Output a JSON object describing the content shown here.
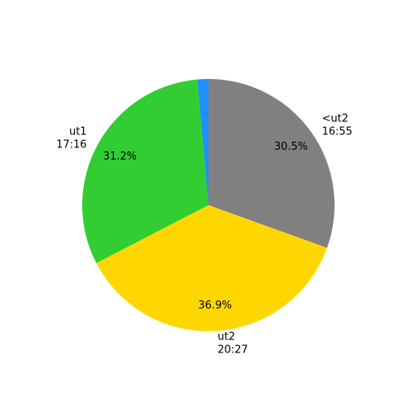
{
  "chart_data": {
    "type": "pie",
    "categories": [
      [
        "<ut2",
        "16:55"
      ],
      [
        "ut2",
        "20:27"
      ],
      [
        "ut1",
        "17:16"
      ],
      null
    ],
    "values": [
      30.5,
      36.9,
      31.2,
      1.4
    ],
    "value_labels": [
      "30.5%",
      "36.9%",
      "31.2%",
      null
    ],
    "colors": [
      "#808080",
      "#ffd700",
      "#32cd32",
      "#1e90ff"
    ],
    "start_angle": 90,
    "clockwise": true
  }
}
